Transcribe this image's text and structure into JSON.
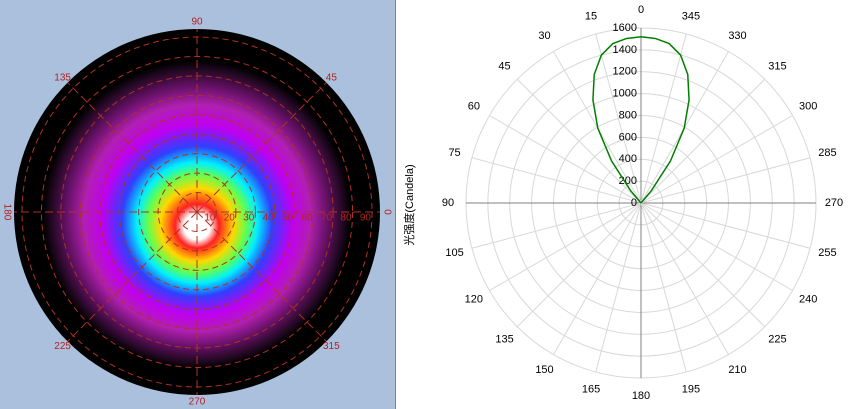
{
  "chart_data": [
    {
      "type": "polar-map",
      "theta_zero": "right",
      "theta_direction": "counterclockwise",
      "theta_ticks": [
        0,
        45,
        90,
        135,
        180,
        225,
        270,
        315
      ],
      "rlim": [
        0,
        90
      ],
      "rticks": [
        10,
        20,
        30,
        40,
        50,
        60,
        70,
        80,
        90
      ]
    },
    {
      "type": "polar-line",
      "ylabel": "光强度(Candela)",
      "theta_zero": "top",
      "theta_direction": "counterclockwise",
      "theta_ticks": [
        0,
        15,
        30,
        45,
        60,
        75,
        90,
        105,
        120,
        135,
        150,
        165,
        180,
        195,
        210,
        225,
        240,
        255,
        270,
        285,
        300,
        315,
        330,
        345
      ],
      "rlim": [
        0,
        1600
      ],
      "rticks": [
        0,
        200,
        400,
        600,
        800,
        1000,
        1200,
        1400,
        1600
      ],
      "grid": true,
      "series": [
        {
          "color": "#008000",
          "x": [
            315,
            320,
            325,
            330,
            335,
            340,
            345,
            350,
            355,
            0,
            5,
            10,
            15,
            20,
            25,
            30,
            35,
            40,
            45
          ],
          "values": [
            0,
            150,
            470,
            790,
            1040,
            1250,
            1400,
            1480,
            1510,
            1520,
            1510,
            1480,
            1400,
            1250,
            1040,
            790,
            470,
            150,
            0
          ]
        }
      ]
    }
  ]
}
